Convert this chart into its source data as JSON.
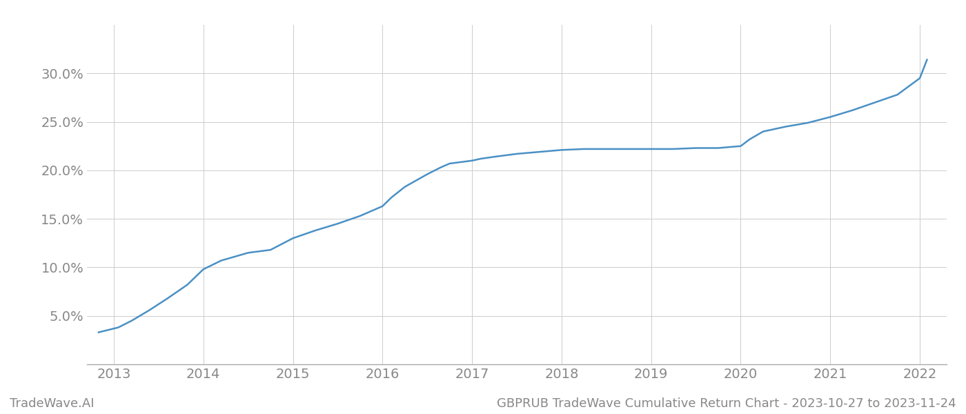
{
  "title": "GBPRUB TradeWave Cumulative Return Chart - 2023-10-27 to 2023-11-24",
  "watermark": "TradeWave.AI",
  "line_color": "#4a90c4",
  "background_color": "#ffffff",
  "grid_color": "#cccccc",
  "x_values": [
    2012.83,
    2013.05,
    2013.2,
    2013.4,
    2013.6,
    2013.82,
    2014.0,
    2014.2,
    2014.5,
    2014.75,
    2015.0,
    2015.25,
    2015.5,
    2015.75,
    2016.0,
    2016.1,
    2016.25,
    2016.5,
    2016.65,
    2016.75,
    2017.0,
    2017.1,
    2017.25,
    2017.5,
    2017.75,
    2018.0,
    2018.25,
    2018.5,
    2018.75,
    2019.0,
    2019.25,
    2019.5,
    2019.75,
    2020.0,
    2020.1,
    2020.25,
    2020.5,
    2020.75,
    2021.0,
    2021.25,
    2021.5,
    2021.75,
    2022.0,
    2022.08
  ],
  "y_values": [
    0.033,
    0.038,
    0.045,
    0.056,
    0.068,
    0.082,
    0.098,
    0.107,
    0.115,
    0.118,
    0.13,
    0.138,
    0.145,
    0.153,
    0.163,
    0.172,
    0.183,
    0.196,
    0.203,
    0.207,
    0.21,
    0.212,
    0.214,
    0.217,
    0.219,
    0.221,
    0.222,
    0.222,
    0.222,
    0.222,
    0.222,
    0.223,
    0.223,
    0.225,
    0.232,
    0.24,
    0.245,
    0.249,
    0.255,
    0.262,
    0.27,
    0.278,
    0.295,
    0.314
  ],
  "xlim": [
    2012.7,
    2022.3
  ],
  "ylim": [
    0.0,
    0.35
  ],
  "yticks": [
    0.05,
    0.1,
    0.15,
    0.2,
    0.25,
    0.3
  ],
  "ytick_labels": [
    "5.0%",
    "10.0%",
    "15.0%",
    "20.0%",
    "25.0%",
    "30.0%"
  ],
  "xticks": [
    2013,
    2014,
    2015,
    2016,
    2017,
    2018,
    2019,
    2020,
    2021,
    2022
  ],
  "tick_color": "#888888",
  "axis_color": "#aaaaaa",
  "font_size_ticks": 14,
  "font_size_footer": 13,
  "line_width": 1.8
}
